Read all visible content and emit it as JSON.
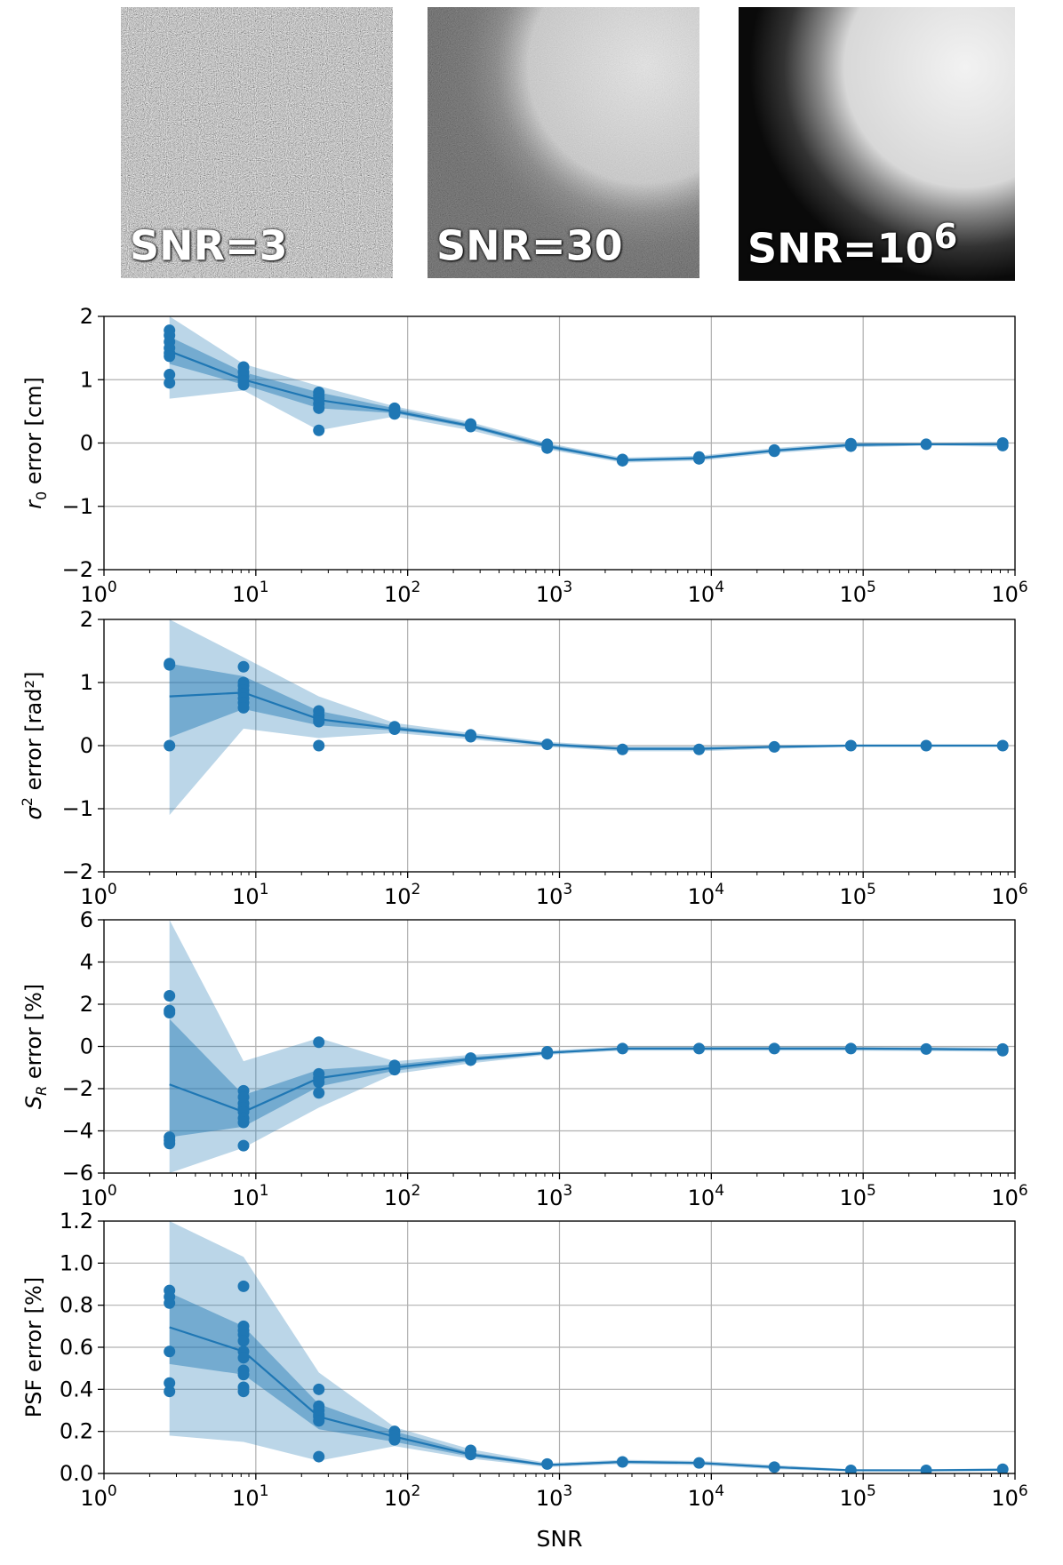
{
  "figure": {
    "xlabel": "SNR",
    "colors": {
      "series": "#1f77b4",
      "band_outer": "#1f77b4",
      "band_inner": "#1f77b4",
      "grid": "#b0b0b0",
      "axis": "#000000"
    }
  },
  "thumbnails": [
    {
      "label_base": "SNR=3",
      "label_sup": "",
      "noise": "high"
    },
    {
      "label_base": "SNR=30",
      "label_sup": "",
      "noise": "medium"
    },
    {
      "label_base": "SNR=10",
      "label_sup": "6",
      "noise": "none"
    }
  ],
  "chart_data": [
    {
      "type": "line",
      "ylabel_sym": "r",
      "ylabel_sub": "0",
      "ylabel_sup": "",
      "ylabel_rest": " error [cm]",
      "xscale": "log",
      "xlim": [
        1,
        1000000
      ],
      "ylim": [
        -2,
        2
      ],
      "yticks": [
        -2,
        -1,
        0,
        1,
        2
      ],
      "ytick_labels": [
        "−2",
        "−1",
        "0",
        "1",
        "2"
      ],
      "xtick_base": "10",
      "xtick_exps": [
        "0",
        "1",
        "2",
        "3",
        "4",
        "5",
        "6"
      ],
      "x": [
        2.7,
        8.3,
        26,
        82,
        260,
        830,
        2600,
        8300,
        26000,
        83000,
        260000,
        830000
      ],
      "mean": [
        1.45,
        1.0,
        0.68,
        0.5,
        0.27,
        -0.05,
        -0.27,
        -0.24,
        -0.12,
        -0.03,
        -0.02,
        -0.02
      ],
      "inner_low": [
        1.25,
        0.92,
        0.55,
        0.47,
        0.24,
        -0.08,
        -0.29,
        -0.26,
        -0.14,
        -0.05,
        -0.03,
        -0.04
      ],
      "inner_high": [
        1.68,
        1.12,
        0.8,
        0.55,
        0.3,
        -0.02,
        -0.25,
        -0.22,
        -0.1,
        -0.01,
        -0.01,
        0.0
      ],
      "outer_low": [
        0.7,
        0.83,
        0.2,
        0.42,
        0.2,
        -0.1,
        -0.31,
        -0.28,
        -0.16,
        -0.07,
        -0.04,
        -0.06
      ],
      "outer_high": [
        2.0,
        1.25,
        0.9,
        0.58,
        0.33,
        0.0,
        -0.23,
        -0.2,
        -0.08,
        0.01,
        0.0,
        0.02
      ],
      "points": [
        [
          2.7,
          1.78
        ],
        [
          2.7,
          1.7
        ],
        [
          2.7,
          1.6
        ],
        [
          2.7,
          1.5
        ],
        [
          2.7,
          1.42
        ],
        [
          2.7,
          1.37
        ],
        [
          2.7,
          1.08
        ],
        [
          2.7,
          0.95
        ],
        [
          8.3,
          1.2
        ],
        [
          8.3,
          1.12
        ],
        [
          8.3,
          1.05
        ],
        [
          8.3,
          0.98
        ],
        [
          8.3,
          0.92
        ],
        [
          26,
          0.8
        ],
        [
          26,
          0.75
        ],
        [
          26,
          0.7
        ],
        [
          26,
          0.62
        ],
        [
          26,
          0.55
        ],
        [
          26,
          0.2
        ],
        [
          82,
          0.55
        ],
        [
          82,
          0.5
        ],
        [
          82,
          0.46
        ],
        [
          260,
          0.3
        ],
        [
          260,
          0.26
        ],
        [
          830,
          -0.02
        ],
        [
          830,
          -0.08
        ],
        [
          2600,
          -0.26
        ],
        [
          2600,
          -0.28
        ],
        [
          8300,
          -0.22
        ],
        [
          8300,
          -0.25
        ],
        [
          26000,
          -0.11
        ],
        [
          26000,
          -0.13
        ],
        [
          83000,
          -0.01
        ],
        [
          83000,
          -0.05
        ],
        [
          260000,
          -0.02
        ],
        [
          830000,
          0.0
        ],
        [
          830000,
          -0.04
        ]
      ]
    },
    {
      "type": "line",
      "ylabel_sym": "σ",
      "ylabel_sub": "",
      "ylabel_sup": "2",
      "ylabel_rest": " error [rad²]",
      "xscale": "log",
      "xlim": [
        1,
        1000000
      ],
      "ylim": [
        -2,
        2
      ],
      "yticks": [
        -2,
        -1,
        0,
        1,
        2
      ],
      "ytick_labels": [
        "−2",
        "−1",
        "0",
        "1",
        "2"
      ],
      "xtick_base": "10",
      "xtick_exps": [
        "0",
        "1",
        "2",
        "3",
        "4",
        "5",
        "6"
      ],
      "x": [
        2.7,
        8.3,
        26,
        82,
        260,
        830,
        2600,
        8300,
        26000,
        83000,
        260000,
        830000
      ],
      "mean": [
        0.78,
        0.84,
        0.42,
        0.27,
        0.15,
        0.02,
        -0.05,
        -0.05,
        -0.02,
        0.0,
        0.0,
        0.0
      ],
      "inner_low": [
        0.13,
        0.58,
        0.32,
        0.24,
        0.13,
        0.0,
        -0.07,
        -0.07,
        -0.03,
        -0.01,
        -0.01,
        -0.01
      ],
      "inner_high": [
        1.3,
        1.1,
        0.55,
        0.31,
        0.17,
        0.04,
        -0.03,
        -0.03,
        -0.01,
        0.01,
        0.01,
        0.01
      ],
      "outer_low": [
        -1.1,
        0.27,
        0.12,
        0.2,
        0.1,
        -0.02,
        -0.09,
        -0.09,
        -0.05,
        -0.02,
        -0.02,
        -0.02
      ],
      "outer_high": [
        2.0,
        1.4,
        0.78,
        0.36,
        0.2,
        0.06,
        -0.01,
        -0.01,
        0.01,
        0.02,
        0.02,
        0.02
      ],
      "points": [
        [
          2.7,
          1.3
        ],
        [
          2.7,
          1.28
        ],
        [
          2.7,
          0.0
        ],
        [
          8.3,
          1.25
        ],
        [
          8.3,
          1.0
        ],
        [
          8.3,
          0.95
        ],
        [
          8.3,
          0.88
        ],
        [
          8.3,
          0.82
        ],
        [
          8.3,
          0.75
        ],
        [
          8.3,
          0.68
        ],
        [
          8.3,
          0.6
        ],
        [
          26,
          0.55
        ],
        [
          26,
          0.48
        ],
        [
          26,
          0.42
        ],
        [
          26,
          0.38
        ],
        [
          26,
          0.0
        ],
        [
          82,
          0.3
        ],
        [
          82,
          0.26
        ],
        [
          260,
          0.17
        ],
        [
          260,
          0.14
        ],
        [
          830,
          0.02
        ],
        [
          2600,
          -0.06
        ],
        [
          8300,
          -0.06
        ],
        [
          26000,
          -0.02
        ],
        [
          83000,
          0.0
        ],
        [
          260000,
          0.0
        ],
        [
          830000,
          0.0
        ]
      ]
    },
    {
      "type": "line",
      "ylabel_sym": "S",
      "ylabel_sub": "R",
      "ylabel_sup": "",
      "ylabel_rest": " error [%]",
      "xscale": "log",
      "xlim": [
        1,
        1000000
      ],
      "ylim": [
        -6,
        6
      ],
      "yticks": [
        -6,
        -4,
        -2,
        0,
        2,
        4,
        6
      ],
      "ytick_labels": [
        "−6",
        "−4",
        "−2",
        "0",
        "2",
        "4",
        "6"
      ],
      "xtick_base": "10",
      "xtick_exps": [
        "0",
        "1",
        "2",
        "3",
        "4",
        "5",
        "6"
      ],
      "x": [
        2.7,
        8.3,
        26,
        82,
        260,
        830,
        2600,
        8300,
        26000,
        83000,
        260000,
        830000
      ],
      "mean": [
        -1.8,
        -3.1,
        -1.5,
        -1.0,
        -0.6,
        -0.3,
        -0.1,
        -0.1,
        -0.1,
        -0.1,
        -0.12,
        -0.15
      ],
      "inner_low": [
        -4.3,
        -3.8,
        -1.9,
        -1.15,
        -0.7,
        -0.35,
        -0.15,
        -0.15,
        -0.15,
        -0.15,
        -0.17,
        -0.2
      ],
      "inner_high": [
        1.3,
        -2.3,
        -1.1,
        -0.85,
        -0.5,
        -0.25,
        -0.05,
        -0.05,
        -0.05,
        -0.05,
        -0.07,
        -0.1
      ],
      "outer_low": [
        -6.0,
        -4.8,
        -2.9,
        -1.3,
        -0.8,
        -0.4,
        -0.2,
        -0.2,
        -0.2,
        -0.2,
        -0.22,
        -0.25
      ],
      "outer_high": [
        6.0,
        -0.7,
        0.4,
        -0.7,
        -0.4,
        -0.2,
        0.0,
        0.0,
        0.0,
        0.0,
        -0.02,
        -0.05
      ],
      "points": [
        [
          2.7,
          2.4
        ],
        [
          2.7,
          1.7
        ],
        [
          2.7,
          1.6
        ],
        [
          2.7,
          -4.3
        ],
        [
          2.7,
          -4.45
        ],
        [
          2.7,
          -4.6
        ],
        [
          8.3,
          -2.1
        ],
        [
          8.3,
          -2.4
        ],
        [
          8.3,
          -2.7
        ],
        [
          8.3,
          -2.9
        ],
        [
          8.3,
          -3.1
        ],
        [
          8.3,
          -3.4
        ],
        [
          8.3,
          -3.6
        ],
        [
          8.3,
          -4.7
        ],
        [
          26,
          0.2
        ],
        [
          26,
          -1.3
        ],
        [
          26,
          -1.5
        ],
        [
          26,
          -1.7
        ],
        [
          26,
          -2.2
        ],
        [
          82,
          -0.9
        ],
        [
          82,
          -1.1
        ],
        [
          260,
          -0.55
        ],
        [
          260,
          -0.65
        ],
        [
          830,
          -0.25
        ],
        [
          830,
          -0.35
        ],
        [
          2600,
          -0.1
        ],
        [
          8300,
          -0.1
        ],
        [
          26000,
          -0.1
        ],
        [
          83000,
          -0.1
        ],
        [
          260000,
          -0.12
        ],
        [
          830000,
          -0.12
        ],
        [
          830000,
          -0.2
        ]
      ]
    },
    {
      "type": "line",
      "ylabel_sym": "",
      "ylabel_sub": "",
      "ylabel_sup": "",
      "ylabel_rest": "PSF error [%]",
      "xscale": "log",
      "xlim": [
        1,
        1000000
      ],
      "ylim": [
        0.0,
        1.2
      ],
      "yticks": [
        0.0,
        0.2,
        0.4,
        0.6,
        0.8,
        1.0,
        1.2
      ],
      "ytick_labels": [
        "0.0",
        "0.2",
        "0.4",
        "0.6",
        "0.8",
        "1.0",
        "1.2"
      ],
      "xtick_base": "10",
      "xtick_exps": [
        "0",
        "1",
        "2",
        "3",
        "4",
        "5",
        "6"
      ],
      "x": [
        2.7,
        8.3,
        26,
        82,
        260,
        830,
        2600,
        8300,
        26000,
        83000,
        260000,
        830000
      ],
      "mean": [
        0.695,
        0.58,
        0.27,
        0.175,
        0.09,
        0.04,
        0.055,
        0.05,
        0.03,
        0.015,
        0.015,
        0.018
      ],
      "inner_low": [
        0.52,
        0.47,
        0.21,
        0.15,
        0.08,
        0.035,
        0.05,
        0.045,
        0.025,
        0.012,
        0.012,
        0.015
      ],
      "inner_high": [
        0.86,
        0.7,
        0.33,
        0.2,
        0.1,
        0.045,
        0.06,
        0.055,
        0.035,
        0.018,
        0.018,
        0.021
      ],
      "outer_low": [
        0.18,
        0.15,
        0.06,
        0.13,
        0.07,
        0.03,
        0.045,
        0.04,
        0.02,
        0.01,
        0.01,
        0.012
      ],
      "outer_high": [
        1.2,
        1.03,
        0.48,
        0.22,
        0.115,
        0.05,
        0.065,
        0.06,
        0.04,
        0.02,
        0.02,
        0.024
      ],
      "points": [
        [
          2.7,
          0.87
        ],
        [
          2.7,
          0.84
        ],
        [
          2.7,
          0.81
        ],
        [
          2.7,
          0.58
        ],
        [
          2.7,
          0.43
        ],
        [
          2.7,
          0.39
        ],
        [
          8.3,
          0.89
        ],
        [
          8.3,
          0.7
        ],
        [
          8.3,
          0.68
        ],
        [
          8.3,
          0.66
        ],
        [
          8.3,
          0.63
        ],
        [
          8.3,
          0.58
        ],
        [
          8.3,
          0.55
        ],
        [
          8.3,
          0.49
        ],
        [
          8.3,
          0.47
        ],
        [
          8.3,
          0.41
        ],
        [
          8.3,
          0.39
        ],
        [
          26,
          0.4
        ],
        [
          26,
          0.32
        ],
        [
          26,
          0.3
        ],
        [
          26,
          0.28
        ],
        [
          26,
          0.27
        ],
        [
          26,
          0.25
        ],
        [
          26,
          0.08
        ],
        [
          82,
          0.2
        ],
        [
          82,
          0.18
        ],
        [
          82,
          0.16
        ],
        [
          260,
          0.11
        ],
        [
          260,
          0.09
        ],
        [
          830,
          0.045
        ],
        [
          2600,
          0.055
        ],
        [
          8300,
          0.05
        ],
        [
          26000,
          0.03
        ],
        [
          83000,
          0.015
        ],
        [
          260000,
          0.015
        ],
        [
          830000,
          0.02
        ]
      ]
    }
  ]
}
